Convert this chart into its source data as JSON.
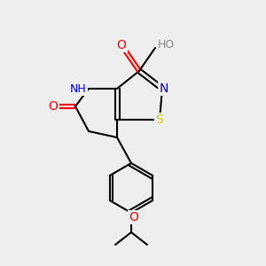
{
  "background_color": "#eeeeee",
  "figure_size": [
    3.0,
    3.0
  ],
  "dpi": 100,
  "atom_colors": {
    "O": "#ff0000",
    "N": "#0000cc",
    "S": "#cccc00",
    "C": "#000000",
    "H": "#888888"
  },
  "bond_color": "#000000",
  "bond_width": 1.5,
  "font_size": 9
}
